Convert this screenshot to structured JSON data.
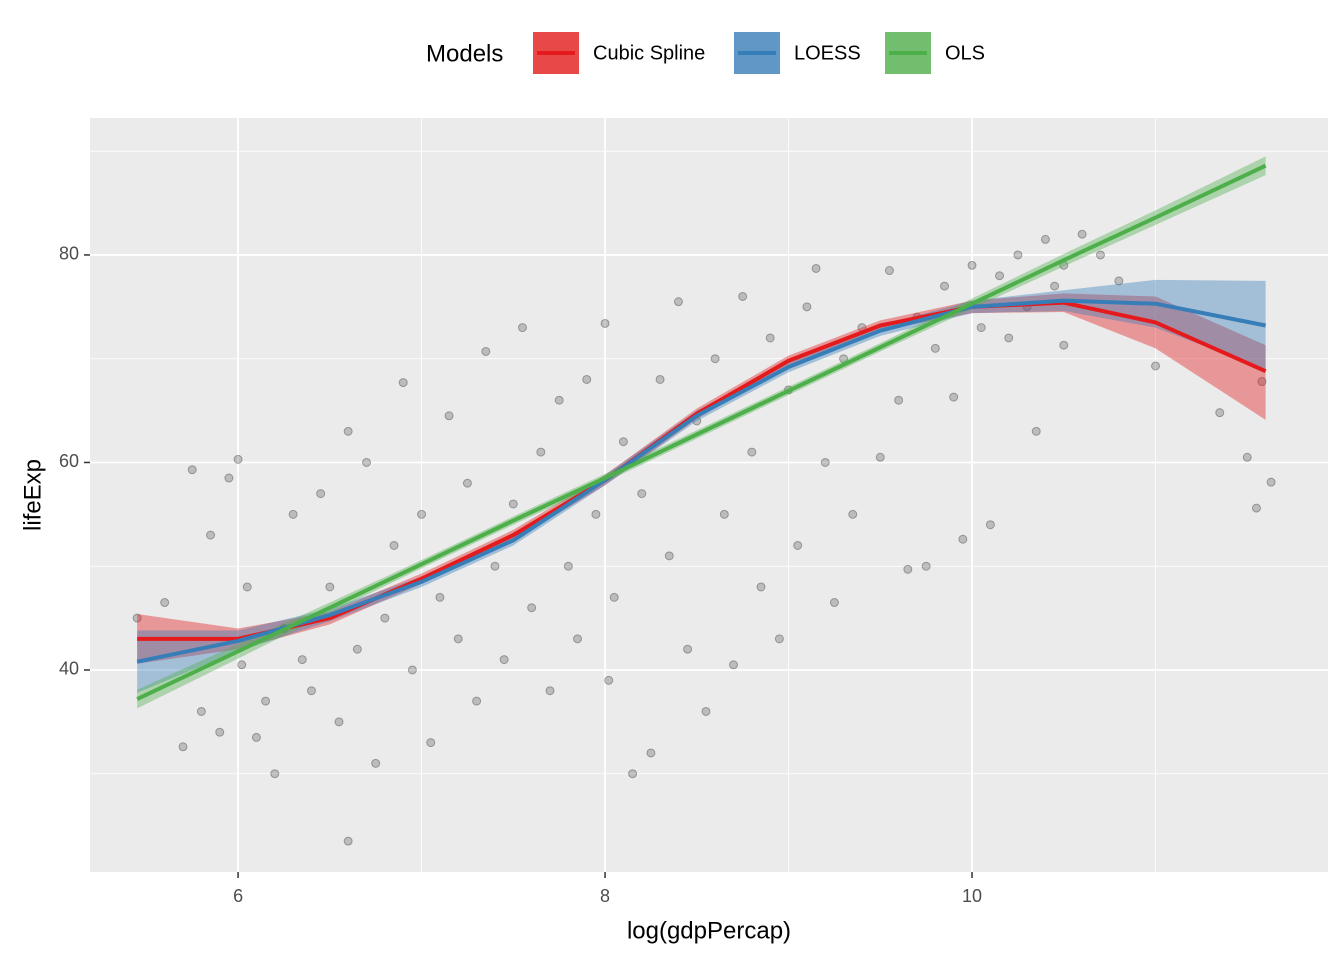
{
  "chart_data": {
    "type": "scatter",
    "x_label": "log(gdpPercap)",
    "y_label": "lifeExp",
    "legend_title": "Models",
    "legend_position": "top",
    "grid": true,
    "xlim": [
      5.193,
      11.94
    ],
    "ylim": [
      20.53,
      93.2
    ],
    "xticks": [
      6,
      8,
      10
    ],
    "yticks": [
      40,
      60,
      80
    ],
    "xminor": [
      7,
      9,
      11
    ],
    "yminor": [
      30,
      50,
      70,
      90
    ],
    "points": {
      "color": "#000000",
      "x": [
        5.45,
        5.6,
        5.7,
        5.75,
        5.8,
        5.85,
        5.9,
        5.95,
        6.0,
        6.02,
        6.05,
        6.1,
        6.15,
        6.2,
        6.25,
        6.3,
        6.35,
        6.4,
        6.45,
        6.5,
        6.55,
        6.6,
        6.6,
        6.65,
        6.7,
        6.75,
        6.8,
        6.85,
        6.9,
        6.95,
        7.0,
        7.05,
        7.1,
        7.15,
        7.2,
        7.25,
        7.3,
        7.35,
        7.4,
        7.45,
        7.5,
        7.55,
        7.6,
        7.65,
        7.7,
        7.75,
        7.8,
        7.85,
        7.9,
        7.95,
        8.0,
        8.02,
        8.05,
        8.1,
        8.15,
        8.2,
        8.25,
        8.3,
        8.35,
        8.4,
        8.45,
        8.5,
        8.55,
        8.6,
        8.65,
        8.7,
        8.75,
        8.8,
        8.85,
        8.9,
        8.95,
        9.0,
        9.05,
        9.1,
        9.15,
        9.2,
        9.25,
        9.3,
        9.35,
        9.4,
        9.5,
        9.55,
        9.6,
        9.65,
        9.7,
        9.75,
        9.8,
        9.85,
        9.9,
        9.95,
        10.0,
        10.05,
        10.1,
        10.15,
        10.2,
        10.25,
        10.3,
        10.35,
        10.4,
        10.45,
        10.5,
        10.6,
        10.7,
        10.8,
        10.5,
        11.0,
        11.35,
        11.5,
        11.55,
        11.63,
        11.58
      ],
      "y": [
        45,
        46.5,
        32.6,
        59.3,
        36,
        53,
        34,
        58.5,
        60.3,
        40.5,
        48,
        33.5,
        37,
        30,
        44,
        55,
        41,
        38,
        57,
        48,
        35,
        23.5,
        63,
        42,
        60,
        31,
        45,
        52,
        67.7,
        40,
        55,
        33,
        47,
        64.5,
        43,
        58,
        37,
        70.7,
        50,
        41,
        56,
        73,
        46,
        61,
        38,
        66,
        50,
        43,
        68,
        55,
        73.4,
        39,
        47,
        62,
        30,
        57,
        32,
        68,
        51,
        75.5,
        42,
        64,
        36,
        70,
        55,
        40.5,
        76,
        61,
        48,
        72,
        43,
        67,
        52,
        75,
        78.7,
        60,
        46.5,
        70,
        55,
        73,
        60.5,
        78.5,
        66,
        49.7,
        74,
        50,
        71,
        77,
        66.3,
        52.6,
        79,
        73,
        54,
        78,
        72,
        80,
        75,
        63,
        81.5,
        77,
        79,
        82,
        80,
        77.5,
        71.3,
        69.3,
        64.8,
        60.5,
        55.6,
        58.1,
        67.8
      ]
    },
    "series": [
      {
        "name": "Cubic Spline",
        "color": "#e41a1c",
        "x": [
          5.45,
          6,
          6.5,
          7,
          7.5,
          8,
          8.5,
          9,
          9.5,
          10,
          10.5,
          11,
          11.6
        ],
        "values": [
          43.0,
          43.0,
          45.0,
          48.8,
          53.0,
          58.3,
          64.7,
          69.8,
          73.2,
          75.0,
          75.4,
          73.5,
          68.8
        ],
        "lower": [
          40.6,
          42.0,
          44.4,
          48.3,
          52.5,
          57.8,
          64.2,
          69.3,
          72.7,
          74.4,
          74.5,
          71.0,
          64.1
        ],
        "upper": [
          45.4,
          44.0,
          45.6,
          49.3,
          53.5,
          58.8,
          65.2,
          70.3,
          73.7,
          75.6,
          76.3,
          76.0,
          71.3
        ]
      },
      {
        "name": "LOESS",
        "color": "#377eb8",
        "x": [
          5.45,
          6,
          6.5,
          7,
          7.5,
          8,
          8.5,
          9,
          9.5,
          10,
          10.5,
          11,
          11.6
        ],
        "values": [
          40.8,
          42.8,
          45.3,
          48.5,
          52.5,
          58.3,
          64.5,
          69.2,
          72.7,
          75.0,
          75.6,
          75.3,
          73.2
        ],
        "lower": [
          37.8,
          41.8,
          44.7,
          48.0,
          52.0,
          57.8,
          64.0,
          68.7,
          72.2,
          74.4,
          74.6,
          73.0,
          69.0
        ],
        "upper": [
          43.8,
          43.8,
          45.9,
          49.0,
          53.0,
          58.8,
          65.0,
          69.7,
          73.2,
          75.6,
          76.6,
          77.6,
          77.5
        ]
      },
      {
        "name": "OLS",
        "color": "#4daf4a",
        "x": [
          5.45,
          6,
          6.5,
          7,
          7.5,
          8,
          8.5,
          9,
          9.5,
          10,
          10.5,
          11,
          11.6
        ],
        "values": [
          37.2,
          41.8,
          46.0,
          50.2,
          54.4,
          58.5,
          62.7,
          66.9,
          71.1,
          75.3,
          79.5,
          83.6,
          88.6
        ],
        "lower": [
          36.3,
          41.1,
          45.5,
          49.8,
          54.0,
          58.1,
          62.3,
          66.5,
          70.7,
          74.8,
          78.9,
          82.9,
          87.7
        ],
        "upper": [
          38.1,
          42.5,
          46.5,
          50.6,
          54.8,
          58.9,
          63.1,
          67.3,
          71.5,
          75.8,
          80.1,
          84.3,
          89.5
        ]
      }
    ]
  }
}
